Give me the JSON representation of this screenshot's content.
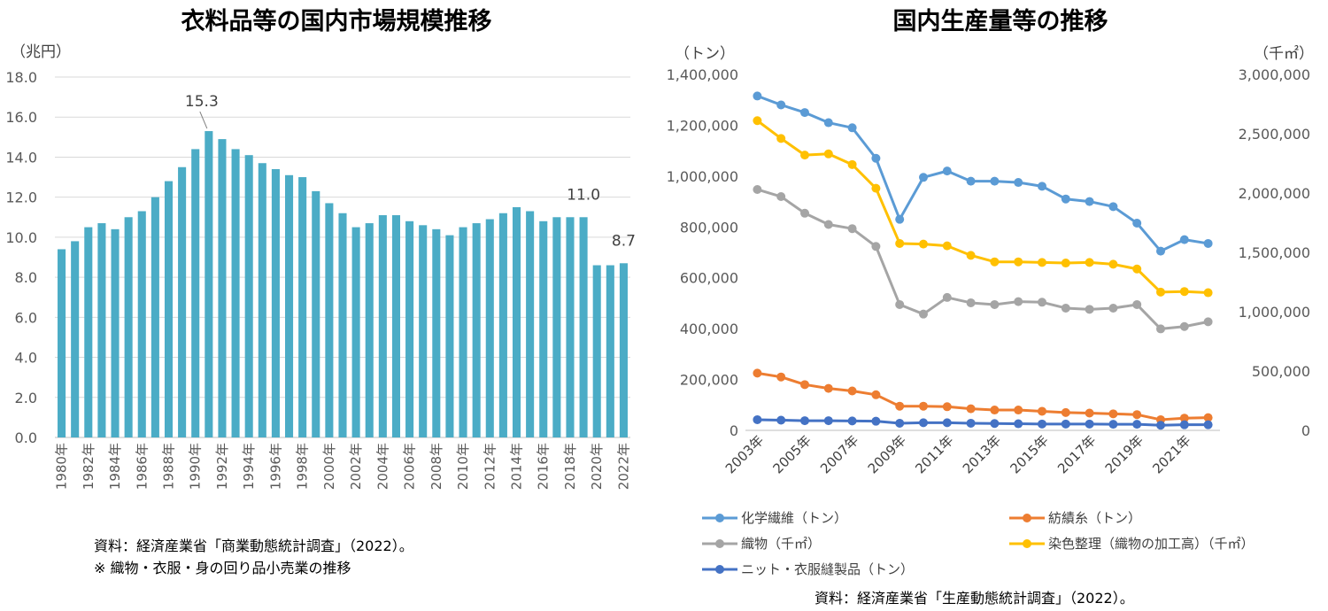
{
  "left": {
    "title": "衣料品等の国内市場規模推移",
    "unit": "（兆円）",
    "notes": [
      "資料：経済産業省「商業動態統計調査」（2022）。",
      "※ 織物・衣服・身の回り品小売業の推移"
    ]
  },
  "right": {
    "title": "国内生産量等の推移",
    "unit_left": "（トン）",
    "unit_right": "（千㎡）",
    "source": "資料：経済産業省「生産動態統計調査」（2022）。"
  },
  "chart_data": [
    {
      "type": "bar",
      "title": "衣料品等の国内市場規模推移",
      "ylabel": "（兆円）",
      "ylim": [
        0,
        18
      ],
      "yticks": [
        "0.0",
        "2.0",
        "4.0",
        "6.0",
        "8.0",
        "10.0",
        "12.0",
        "14.0",
        "16.0",
        "18.0"
      ],
      "categories": [
        "1980年",
        "1981年",
        "1982年",
        "1983年",
        "1984年",
        "1985年",
        "1986年",
        "1987年",
        "1988年",
        "1989年",
        "1990年",
        "1991年",
        "1992年",
        "1993年",
        "1994年",
        "1995年",
        "1996年",
        "1997年",
        "1998年",
        "1999年",
        "2000年",
        "2001年",
        "2002年",
        "2003年",
        "2004年",
        "2005年",
        "2006年",
        "2007年",
        "2008年",
        "2009年",
        "2010年",
        "2011年",
        "2012年",
        "2013年",
        "2014年",
        "2015年",
        "2016年",
        "2017年",
        "2018年",
        "2019年",
        "2020年",
        "2021年",
        "2022年"
      ],
      "category_labels_shown": [
        "1980年",
        "1982年",
        "1984年",
        "1986年",
        "1988年",
        "1990年",
        "1992年",
        "1994年",
        "1996年",
        "1998年",
        "2000年",
        "2002年",
        "2004年",
        "2006年",
        "2008年",
        "2010年",
        "2012年",
        "2014年",
        "2016年",
        "2018年",
        "2020年",
        "2022年"
      ],
      "values": [
        9.4,
        9.8,
        10.5,
        10.7,
        10.4,
        11.0,
        11.3,
        12.0,
        12.8,
        13.5,
        14.4,
        15.3,
        14.9,
        14.4,
        14.1,
        13.7,
        13.4,
        13.1,
        13.0,
        12.3,
        11.7,
        11.2,
        10.5,
        10.7,
        11.1,
        11.1,
        10.8,
        10.6,
        10.4,
        10.1,
        10.5,
        10.7,
        10.9,
        11.2,
        11.5,
        11.3,
        10.8,
        11.0,
        11.0,
        11.0,
        8.6,
        8.6,
        8.7
      ],
      "annotations": [
        {
          "category": "1991年",
          "text": "15.3"
        },
        {
          "category": "2019年",
          "text": "11.0"
        },
        {
          "category": "2022年",
          "text": "8.7"
        }
      ],
      "colors": {
        "bar": "#4BACC6"
      }
    },
    {
      "type": "line",
      "title": "国内生産量等の推移",
      "x": [
        "2003年",
        "2004年",
        "2005年",
        "2006年",
        "2007年",
        "2008年",
        "2009年",
        "2010年",
        "2011年",
        "2012年",
        "2013年",
        "2014年",
        "2015年",
        "2016年",
        "2017年",
        "2018年",
        "2019年",
        "2020年",
        "2021年",
        "2022年"
      ],
      "x_labels_shown": [
        "2003年",
        "2005年",
        "2007年",
        "2009年",
        "2011年",
        "2013年",
        "2015年",
        "2017年",
        "2019年",
        "2021年"
      ],
      "ylim_left": [
        0,
        1400000
      ],
      "yticks_left": [
        "0",
        "200,000",
        "400,000",
        "600,000",
        "800,000",
        "1,000,000",
        "1,200,000",
        "1,400,000"
      ],
      "ylim_right": [
        0,
        3000000
      ],
      "yticks_right": [
        "0",
        "500,000",
        "1,000,000",
        "1,500,000",
        "2,000,000",
        "2,500,000",
        "3,000,000"
      ],
      "series": [
        {
          "name": "化学繊維（トン）",
          "axis": "left",
          "color": "#5B9BD5",
          "values": [
            1315000,
            1280000,
            1250000,
            1210000,
            1190000,
            1070000,
            830000,
            995000,
            1020000,
            980000,
            980000,
            975000,
            960000,
            910000,
            900000,
            880000,
            815000,
            705000,
            750000,
            735000
          ]
        },
        {
          "name": "紡績糸（トン）",
          "axis": "left",
          "color": "#ED7D31",
          "values": [
            225000,
            210000,
            180000,
            165000,
            155000,
            140000,
            95000,
            95000,
            93000,
            85000,
            80000,
            80000,
            75000,
            70000,
            68000,
            65000,
            62000,
            42000,
            48000,
            50000
          ]
        },
        {
          "name": "織物（千㎡）",
          "axis": "right",
          "color": "#A5A5A5",
          "values": [
            2030000,
            1970000,
            1830000,
            1735000,
            1700000,
            1550000,
            1060000,
            980000,
            1120000,
            1075000,
            1060000,
            1085000,
            1080000,
            1030000,
            1020000,
            1030000,
            1060000,
            855000,
            875000,
            915000
          ]
        },
        {
          "name": "染色整理（織物の加工高）（千㎡）",
          "axis": "right",
          "color": "#FFC000",
          "values": [
            2610000,
            2460000,
            2320000,
            2330000,
            2240000,
            2040000,
            1575000,
            1570000,
            1555000,
            1475000,
            1420000,
            1420000,
            1415000,
            1410000,
            1415000,
            1400000,
            1360000,
            1165000,
            1170000,
            1160000
          ]
        },
        {
          "name": "ニット・衣服縫製品（トン）",
          "axis": "left",
          "color": "#4472C4",
          "values": [
            42000,
            40000,
            38000,
            38000,
            37000,
            36000,
            28000,
            30000,
            30000,
            28000,
            27000,
            26000,
            25000,
            25000,
            25000,
            24000,
            24000,
            20000,
            22000,
            22000
          ]
        }
      ],
      "legend_placement": "bottom"
    }
  ]
}
